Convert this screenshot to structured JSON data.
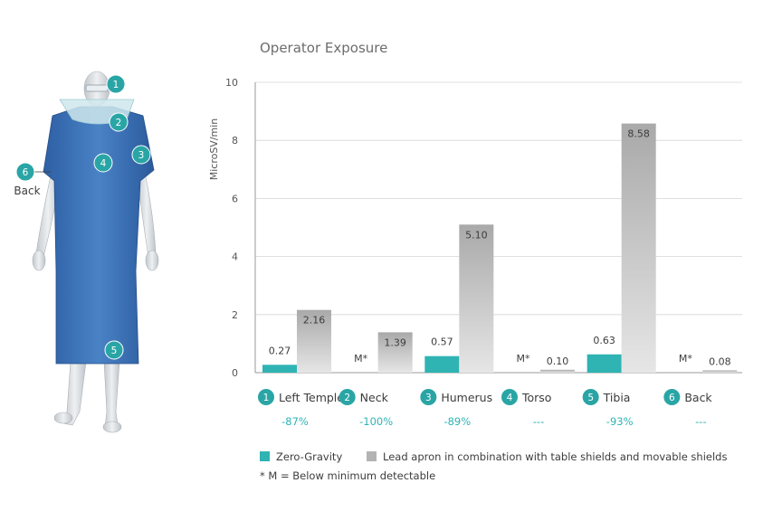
{
  "colors": {
    "zero_gravity": "#2fb3b3",
    "lead_apron": "#b3b3b3",
    "marker": "#2aa5a5",
    "gown": "#3e73b8",
    "gown_dark": "#2a5a9c",
    "skin": "#d4d8dc"
  },
  "figure": {
    "markers": [
      "1",
      "2",
      "3",
      "4",
      "5",
      "6"
    ],
    "back_label": "Back"
  },
  "chart_data": {
    "type": "bar",
    "title": "Operator Exposure",
    "ylabel": "MicroSV/min",
    "ylim": [
      0,
      10
    ],
    "yticks": [
      "0",
      "2",
      "4",
      "6",
      "8",
      "10"
    ],
    "grid": true,
    "categories": [
      {
        "num": "1",
        "label": "Left Temple",
        "reduction": "-87%"
      },
      {
        "num": "2",
        "label": "Neck",
        "reduction": "-100%"
      },
      {
        "num": "3",
        "label": "Humerus",
        "reduction": "-89%"
      },
      {
        "num": "4",
        "label": "Torso",
        "reduction": "---"
      },
      {
        "num": "5",
        "label": "Tibia",
        "reduction": "-93%"
      },
      {
        "num": "6",
        "label": "Back",
        "reduction": "---"
      }
    ],
    "series": [
      {
        "name": "Zero-Gravity",
        "values": [
          0.27,
          0,
          0.57,
          0,
          0.63,
          0
        ],
        "labels": [
          "0.27",
          "M*",
          "0.57",
          "M*",
          "0.63",
          "M*"
        ]
      },
      {
        "name": "Lead apron in combination with table shields and movable shields",
        "values": [
          2.16,
          1.39,
          5.1,
          0.1,
          8.58,
          0.08
        ],
        "labels": [
          "2.16",
          "1.39",
          "5.10",
          "0.10",
          "8.58",
          "0.08"
        ]
      }
    ],
    "legend_position": "bottom-left",
    "footnote": "* M = Below minimum detectable"
  }
}
